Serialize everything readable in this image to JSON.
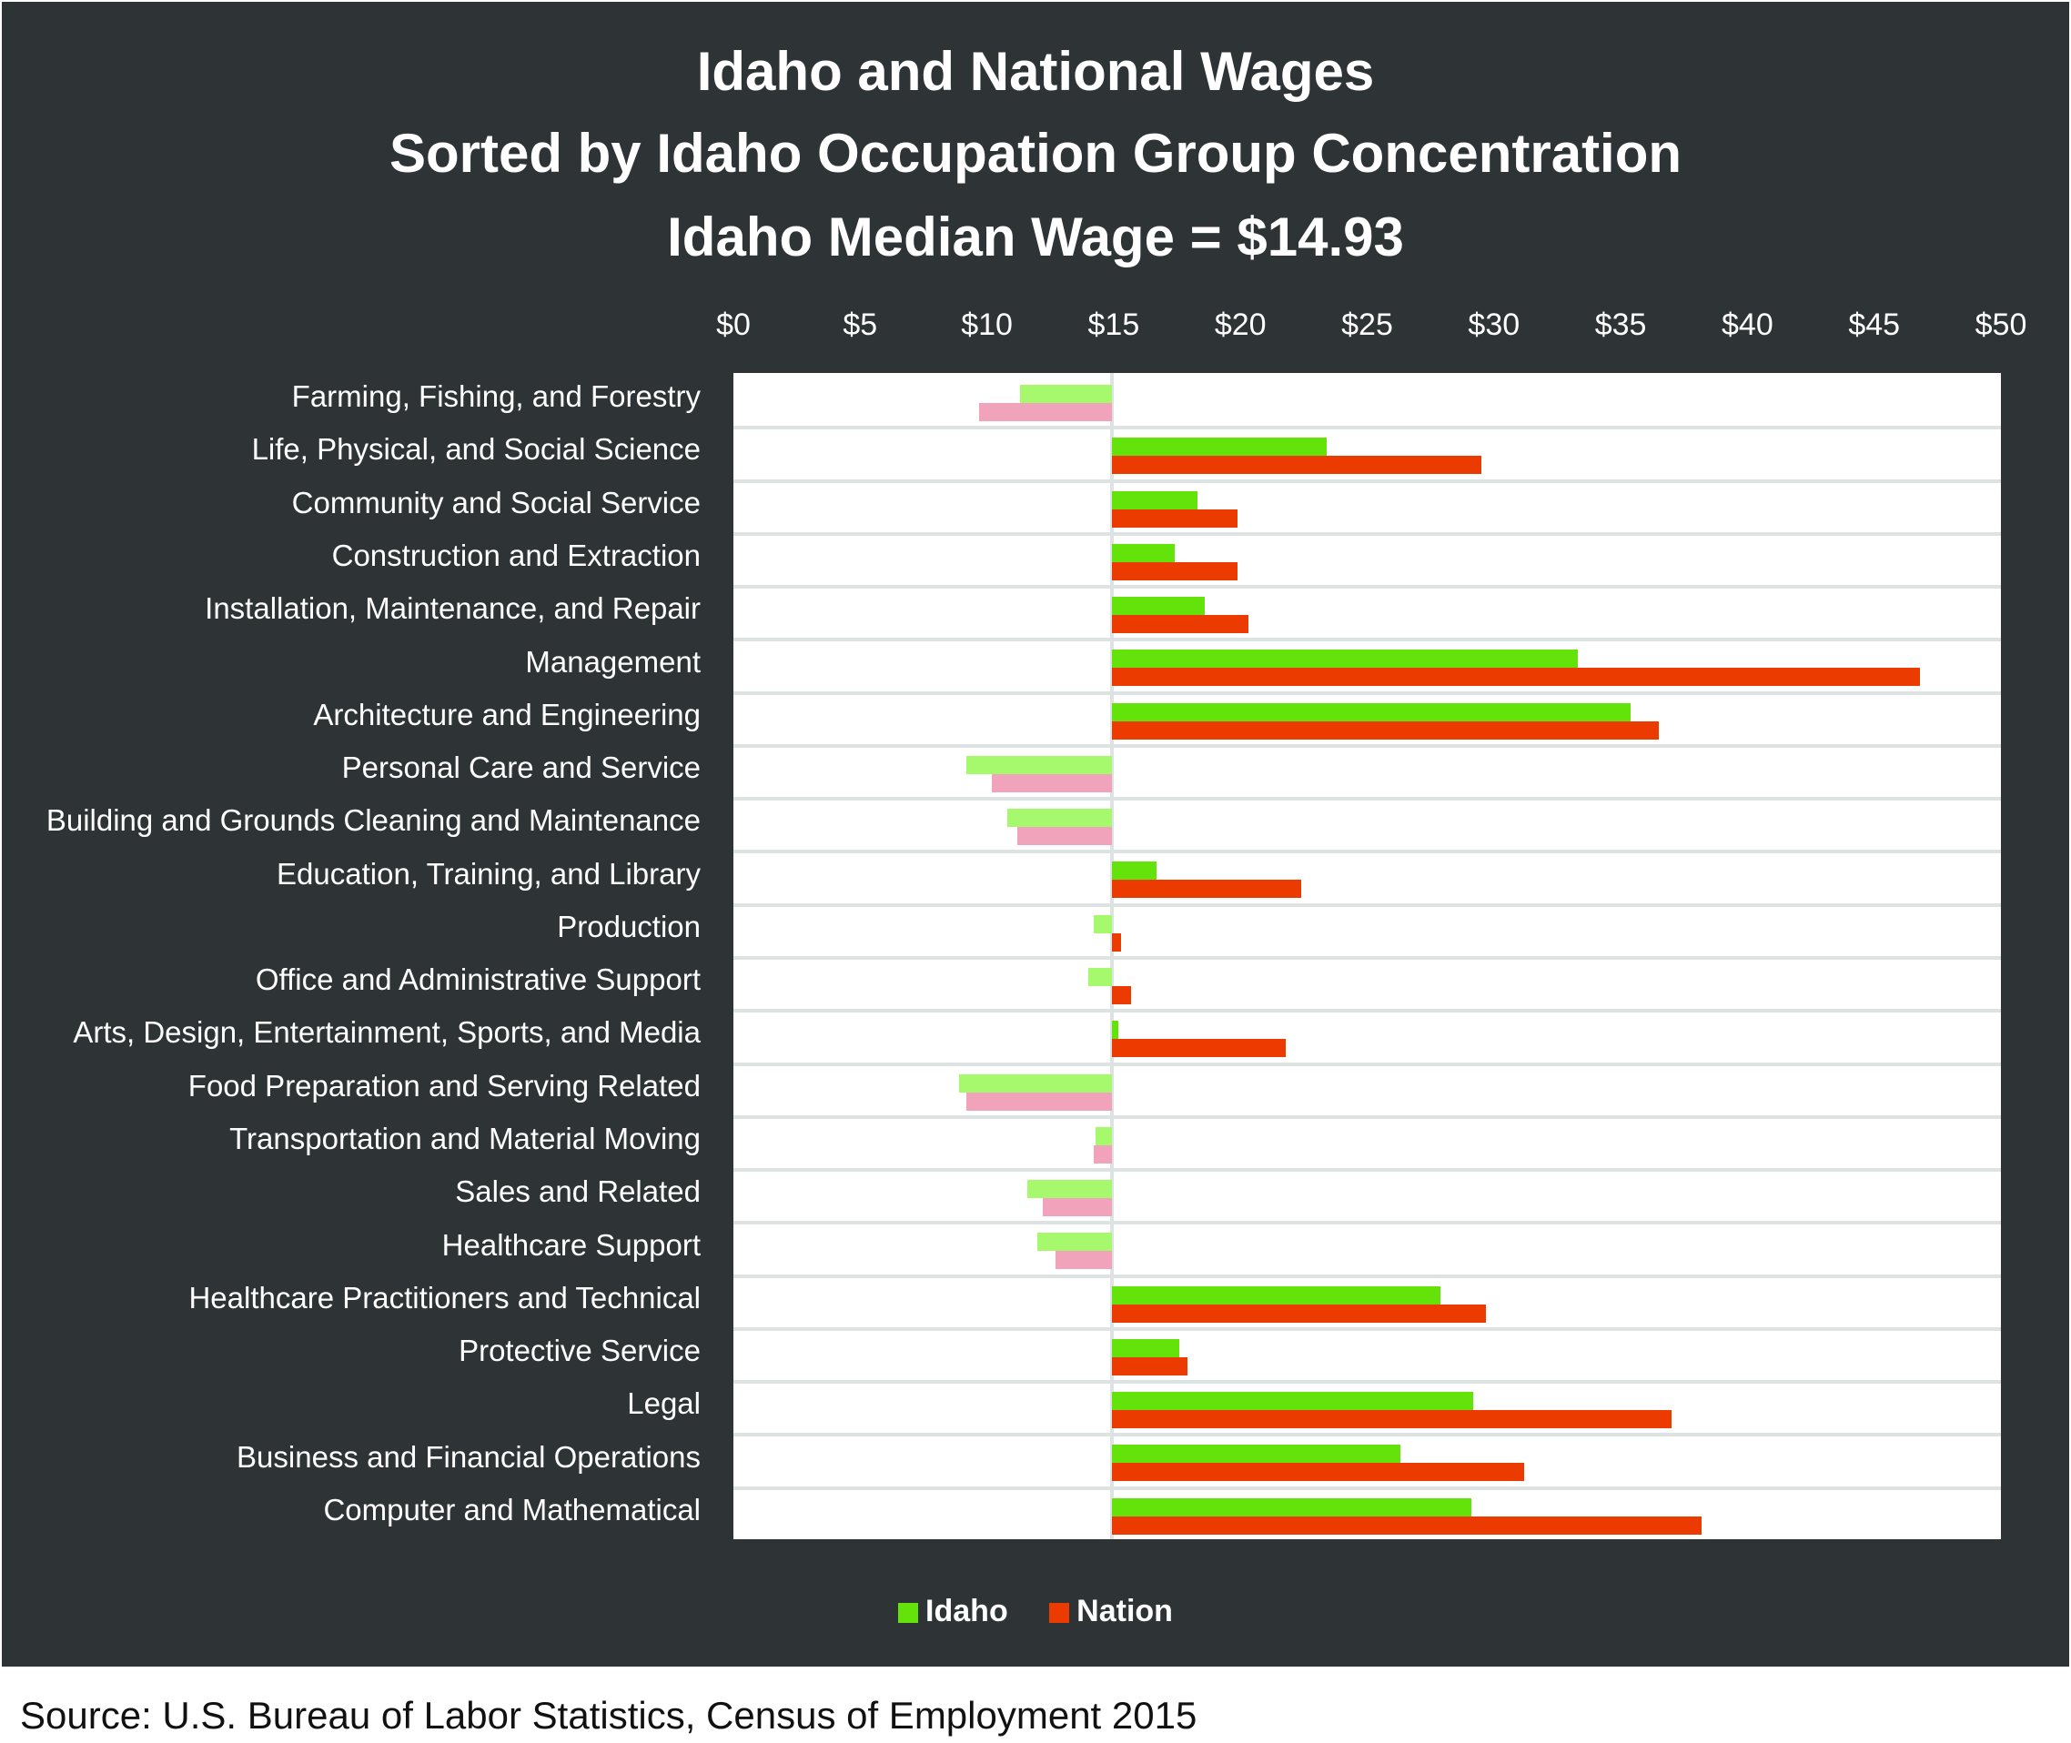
{
  "title": {
    "line1": "Idaho and National Wages",
    "line2": "Sorted by Idaho Occupation Group Concentration",
    "line3": "Idaho Median Wage = $14.93"
  },
  "axis": {
    "ticks": [
      "$0",
      "$5",
      "$10",
      "$15",
      "$20",
      "$25",
      "$30",
      "$35",
      "$40",
      "$45",
      "$50"
    ]
  },
  "legend": {
    "idaho": "Idaho",
    "nation": "Nation"
  },
  "source": "Source:  U.S. Bureau of Labor Statistics, Census of Employment 2015",
  "colors": {
    "idaho": "#64e30a",
    "nation": "#ec3b00",
    "idaho_below": "#a6f86c",
    "nation_below": "#f0a3ba",
    "background": "#2e3436"
  },
  "chart_data": {
    "type": "bar",
    "orientation": "horizontal",
    "title": "Idaho and National Wages / Sorted by Idaho Occupation Group Concentration / Idaho Median Wage = $14.93",
    "xlabel": "",
    "ylabel": "",
    "xlim": [
      0,
      50
    ],
    "baseline": 14.93,
    "grid": true,
    "legend_position": "bottom",
    "categories": [
      "Farming, Fishing, and Forestry",
      "Life, Physical, and Social Science",
      "Community and Social Service",
      "Construction and Extraction",
      "Installation, Maintenance, and Repair",
      "Management",
      "Architecture and Engineering",
      "Personal Care and Service",
      "Building and Grounds Cleaning and Maintenance",
      "Education, Training, and Library",
      "Production",
      "Office and Administrative Support",
      "Arts, Design, Entertainment, Sports, and Media",
      "Food Preparation and Serving Related",
      "Transportation and Material Moving",
      "Sales and Related",
      "Healthcare Support",
      "Healthcare Practitioners and Technical",
      "Protective Service",
      "Legal",
      "Business and Financial Operations",
      "Computer and Mathematical"
    ],
    "series": [
      {
        "name": "Idaho",
        "values": [
          11.3,
          23.4,
          18.3,
          17.4,
          18.6,
          33.3,
          35.4,
          9.2,
          10.8,
          16.7,
          14.2,
          14.0,
          15.2,
          8.9,
          14.3,
          11.6,
          12.0,
          27.9,
          17.6,
          29.2,
          26.3,
          29.1
        ]
      },
      {
        "name": "Nation",
        "values": [
          9.7,
          29.5,
          19.9,
          19.9,
          20.3,
          46.8,
          36.5,
          10.2,
          11.2,
          22.4,
          15.3,
          15.7,
          21.8,
          9.2,
          14.2,
          12.2,
          12.7,
          29.7,
          17.9,
          37.0,
          31.2,
          38.2
        ]
      }
    ]
  }
}
